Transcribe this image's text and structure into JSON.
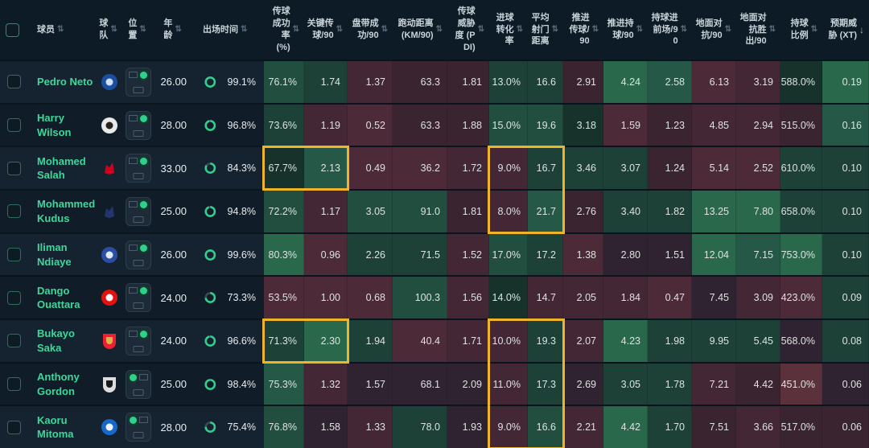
{
  "header": {
    "columns_left": [
      {
        "key": "player",
        "label": "球员",
        "sort": "both",
        "align": "left"
      },
      {
        "key": "team",
        "label": "球队",
        "sort": "both",
        "align": "center",
        "stack": true
      },
      {
        "key": "position",
        "label": "位置",
        "sort": "both",
        "align": "center",
        "stack": true
      },
      {
        "key": "age",
        "label": "年龄",
        "sort": "both",
        "align": "center",
        "stack": true
      },
      {
        "key": "time",
        "label": "出场时间",
        "sort": "both",
        "align": "left"
      }
    ],
    "columns_stats": [
      {
        "key": "pass_pct",
        "label": "传球成功率 (%)",
        "sort": "both"
      },
      {
        "key": "key_pass",
        "label": "关键传球/90",
        "sort": "both"
      },
      {
        "key": "dribble",
        "label": "盘带成功/90",
        "sort": "both"
      },
      {
        "key": "run_dist",
        "label": "跑动距离 (KM/90)",
        "sort": "both"
      },
      {
        "key": "pass_threat",
        "label": "传球威胁度 (PDI)",
        "sort": "both"
      },
      {
        "key": "conversion",
        "label": "进球转化率",
        "sort": "both"
      },
      {
        "key": "shot_dist",
        "label": "平均射门距离",
        "sort": "both"
      },
      {
        "key": "prog_pass",
        "label": "推进传球/90",
        "sort": "both"
      },
      {
        "key": "prog_carry",
        "label": "推进持球/90",
        "sort": "both"
      },
      {
        "key": "carry_fwd",
        "label": "持球进前场/90",
        "sort": "both"
      },
      {
        "key": "ground_duel",
        "label": "地面对抗/90",
        "sort": "both"
      },
      {
        "key": "duel_won",
        "label": "地面对抗胜出/90",
        "sort": "both"
      },
      {
        "key": "possession",
        "label": "持球比例",
        "sort": "both"
      },
      {
        "key": "xt",
        "label": "预期威胁 (XT)",
        "sort": "desc"
      }
    ]
  },
  "icons": {
    "sort_both": "⇅",
    "sort_desc": "↓"
  },
  "palette": {
    "G4": "#2a684c",
    "G3": "#265847",
    "G2": "#224e40",
    "G1": "#1d4136",
    "G0": "#17322b",
    "N": "#302331",
    "R0": "#3a2430",
    "R1": "#442734",
    "R2": "#4c2a37",
    "R3": "#5b323c",
    "highlight": "#f0b429",
    "accent_green": "#2fd08c",
    "player_name": "#3ed79a"
  },
  "players": [
    {
      "name": "Pedro Neto",
      "team": "chelsea",
      "badge": {
        "shape": "circle",
        "c1": "#1a4fa0",
        "c2": "#cfe0f5"
      },
      "position_side": "right",
      "age": "26.00",
      "playing_time": "99.1%",
      "playing_time_value": 99.1,
      "stats_values": [
        "76.1%",
        "1.74",
        "1.37",
        "63.3",
        "1.81",
        "13.0%",
        "16.6",
        "2.91",
        "4.24",
        "2.58",
        "6.13",
        "3.19",
        "588.0%",
        "0.19"
      ],
      "stats_tones": [
        "G2",
        "G1",
        "R1",
        "R0",
        "R0",
        "G1",
        "G1",
        "R0",
        "G4",
        "G3",
        "R2",
        "R1",
        "G0",
        "G4"
      ]
    },
    {
      "name": "Harry Wilson",
      "team": "fulham",
      "badge": {
        "shape": "circle",
        "c1": "#e9e9e9",
        "c2": "#27211f"
      },
      "position_side": "right",
      "age": "28.00",
      "playing_time": "96.8%",
      "playing_time_value": 96.8,
      "stats_values": [
        "73.6%",
        "1.19",
        "0.52",
        "63.3",
        "1.88",
        "15.0%",
        "19.6",
        "3.18",
        "1.59",
        "1.23",
        "4.85",
        "2.94",
        "515.0%",
        "0.16"
      ],
      "stats_tones": [
        "G1",
        "R1",
        "R2",
        "R0",
        "R0",
        "G2",
        "G2",
        "G0",
        "R2",
        "R0",
        "R1",
        "R1",
        "R0",
        "G3"
      ]
    },
    {
      "name": "Mohamed Salah",
      "team": "liverpool",
      "badge": {
        "shape": "glyph",
        "c1": "none",
        "c2": "#d0021b"
      },
      "position_side": "right",
      "age": "33.00",
      "playing_time": "84.3%",
      "playing_time_value": 84.3,
      "stats_values": [
        "67.7%",
        "2.13",
        "0.49",
        "36.2",
        "1.72",
        "9.0%",
        "16.7",
        "3.46",
        "3.07",
        "1.24",
        "5.14",
        "2.52",
        "610.0%",
        "0.10"
      ],
      "stats_tones": [
        "G0",
        "G3",
        "R2",
        "R2",
        "R1",
        "R1",
        "G1",
        "G1",
        "G1",
        "R0",
        "R2",
        "R2",
        "G1",
        "G1"
      ]
    },
    {
      "name": "Mohammed Kudus",
      "team": "tottenham",
      "badge": {
        "shape": "glyph",
        "c1": "none",
        "c2": "#24346e"
      },
      "position_side": "right",
      "age": "25.00",
      "playing_time": "94.8%",
      "playing_time_value": 94.8,
      "stats_values": [
        "72.2%",
        "1.17",
        "3.05",
        "91.0",
        "1.81",
        "8.0%",
        "21.7",
        "2.76",
        "3.40",
        "1.82",
        "13.25",
        "7.80",
        "658.0%",
        "0.10"
      ],
      "stats_tones": [
        "G2",
        "R1",
        "G2",
        "G2",
        "R0",
        "R1",
        "G3",
        "R0",
        "G1",
        "G1",
        "G4",
        "G4",
        "G1",
        "G1"
      ]
    },
    {
      "name": "Iliman Ndiaye",
      "team": "everton",
      "badge": {
        "shape": "circle",
        "c1": "#2a4fa2",
        "c2": "#dfe8f8"
      },
      "position_side": "right",
      "age": "26.00",
      "playing_time": "99.6%",
      "playing_time_value": 99.6,
      "stats_values": [
        "80.3%",
        "0.96",
        "2.26",
        "71.5",
        "1.52",
        "17.0%",
        "17.2",
        "1.38",
        "2.80",
        "1.51",
        "12.04",
        "7.15",
        "753.0%",
        "0.10"
      ],
      "stats_tones": [
        "G4",
        "R2",
        "G1",
        "G1",
        "R1",
        "G2",
        "G1",
        "R2",
        "N",
        "N",
        "G4",
        "G3",
        "G4",
        "G1"
      ]
    },
    {
      "name": "Dango Ouattara",
      "team": "brentford",
      "badge": {
        "shape": "circle",
        "c1": "#e01212",
        "c2": "#f5f5f5"
      },
      "position_side": "right",
      "age": "24.00",
      "playing_time": "73.3%",
      "playing_time_value": 73.3,
      "stats_values": [
        "53.5%",
        "1.00",
        "0.68",
        "100.3",
        "1.56",
        "14.0%",
        "14.7",
        "2.05",
        "1.84",
        "0.47",
        "7.45",
        "3.09",
        "423.0%",
        "0.09"
      ],
      "stats_tones": [
        "R2",
        "R2",
        "R2",
        "G2",
        "R1",
        "G0",
        "R1",
        "R1",
        "R1",
        "R2",
        "N",
        "R1",
        "R2",
        "G1"
      ]
    },
    {
      "name": "Bukayo Saka",
      "team": "arsenal",
      "badge": {
        "shape": "shield",
        "c1": "#ee2030",
        "c2": "#d9b24a"
      },
      "position_side": "right",
      "age": "24.00",
      "playing_time": "96.6%",
      "playing_time_value": 96.6,
      "stats_values": [
        "71.3%",
        "2.30",
        "1.94",
        "40.4",
        "1.71",
        "10.0%",
        "19.3",
        "2.07",
        "4.23",
        "1.98",
        "9.95",
        "5.45",
        "568.0%",
        "0.08"
      ],
      "stats_tones": [
        "G1",
        "G4",
        "G1",
        "R2",
        "R1",
        "R1",
        "G1",
        "R1",
        "G4",
        "G1",
        "G1",
        "G1",
        "N",
        "G1"
      ]
    },
    {
      "name": "Anthony Gordon",
      "team": "newcastle",
      "badge": {
        "shape": "shield",
        "c1": "#dcdcdc",
        "c2": "#17181c"
      },
      "position_side": "left",
      "age": "25.00",
      "playing_time": "98.4%",
      "playing_time_value": 98.4,
      "stats_values": [
        "75.3%",
        "1.32",
        "1.57",
        "68.1",
        "2.09",
        "11.0%",
        "17.3",
        "2.69",
        "3.05",
        "1.78",
        "7.21",
        "4.42",
        "451.0%",
        "0.06"
      ],
      "stats_tones": [
        "G3",
        "R1",
        "N",
        "N",
        "N",
        "R1",
        "G1",
        "N",
        "G1",
        "G1",
        "R1",
        "R0",
        "R3",
        "N"
      ]
    },
    {
      "name": "Kaoru Mitoma",
      "team": "brighton",
      "badge": {
        "shape": "circle",
        "c1": "#1668c9",
        "c2": "#eef4fb"
      },
      "position_side": "left",
      "age": "28.00",
      "playing_time": "75.4%",
      "playing_time_value": 75.4,
      "stats_values": [
        "76.8%",
        "1.58",
        "1.33",
        "78.0",
        "1.93",
        "9.0%",
        "16.6",
        "2.21",
        "4.42",
        "1.70",
        "7.51",
        "3.66",
        "517.0%",
        "0.06"
      ],
      "stats_tones": [
        "G2",
        "N",
        "R1",
        "G1",
        "N",
        "R1",
        "G2",
        "R1",
        "G4",
        "G1",
        "R0",
        "R1",
        "R0",
        "R0"
      ]
    }
  ],
  "highlights": [
    {
      "rows": [
        2,
        2
      ],
      "cols": [
        0,
        1
      ]
    },
    {
      "rows": [
        2,
        3
      ],
      "cols": [
        5,
        6
      ]
    },
    {
      "rows": [
        6,
        6
      ],
      "cols": [
        0,
        1
      ]
    },
    {
      "rows": [
        6,
        8
      ],
      "cols": [
        5,
        6
      ]
    }
  ]
}
